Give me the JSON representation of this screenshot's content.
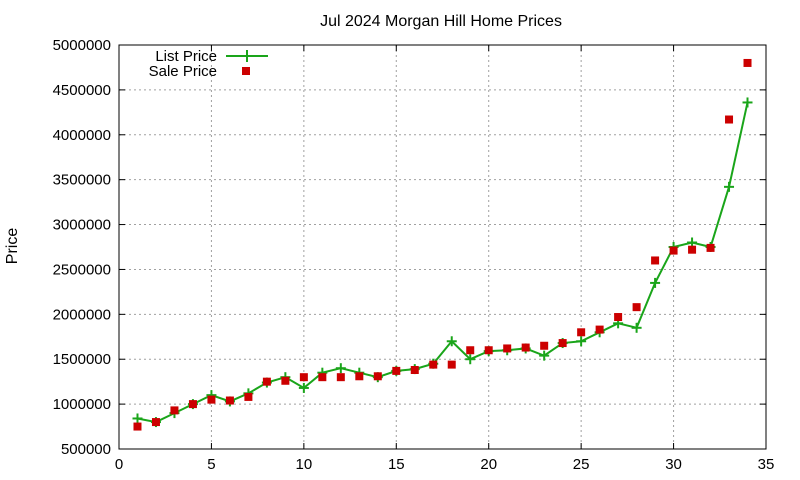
{
  "chart_data": {
    "type": "line",
    "title": "Jul 2024 Morgan Hill Home Prices",
    "xlabel": "",
    "ylabel": "Price",
    "xlim": [
      0,
      35
    ],
    "ylim": [
      500000,
      5000000
    ],
    "x_ticks": [
      "0",
      "5",
      "10",
      "15",
      "20",
      "25",
      "30",
      "35"
    ],
    "x_tick_values": [
      0,
      5,
      10,
      15,
      20,
      25,
      30,
      35
    ],
    "y_ticks": [
      "500000",
      "1000000",
      "1500000",
      "2000000",
      "2500000",
      "3000000",
      "3500000",
      "4000000",
      "4500000",
      "5000000"
    ],
    "y_tick_values": [
      500000,
      1000000,
      1500000,
      2000000,
      2500000,
      3000000,
      3500000,
      4000000,
      4500000,
      5000000
    ],
    "grid": true,
    "legend_position": "top-left",
    "series": [
      {
        "name": "List Price",
        "style": "line-with-plus-markers",
        "color": "#1aa51a",
        "x": [
          1,
          2,
          3,
          4,
          5,
          6,
          7,
          8,
          9,
          10,
          11,
          12,
          13,
          14,
          15,
          16,
          17,
          18,
          19,
          20,
          21,
          22,
          23,
          24,
          25,
          26,
          27,
          28,
          29,
          30,
          31,
          32,
          33,
          34
        ],
        "values": [
          840000,
          800000,
          900000,
          1000000,
          1100000,
          1030000,
          1120000,
          1240000,
          1300000,
          1180000,
          1350000,
          1400000,
          1350000,
          1300000,
          1370000,
          1390000,
          1450000,
          1700000,
          1500000,
          1590000,
          1600000,
          1620000,
          1540000,
          1680000,
          1700000,
          1800000,
          1900000,
          1850000,
          2350000,
          2750000,
          2800000,
          2750000,
          3420000,
          4360000
        ]
      },
      {
        "name": "Sale Price",
        "style": "square-markers",
        "color": "#cc0000",
        "x": [
          1,
          2,
          3,
          4,
          5,
          6,
          7,
          8,
          9,
          10,
          11,
          12,
          13,
          14,
          15,
          16,
          17,
          18,
          19,
          20,
          21,
          22,
          23,
          24,
          25,
          26,
          27,
          28,
          29,
          30,
          31,
          32,
          33,
          34
        ],
        "values": [
          750000,
          800000,
          930000,
          1000000,
          1050000,
          1040000,
          1080000,
          1250000,
          1260000,
          1300000,
          1300000,
          1300000,
          1310000,
          1310000,
          1370000,
          1380000,
          1440000,
          1440000,
          1600000,
          1600000,
          1620000,
          1630000,
          1650000,
          1680000,
          1800000,
          1830000,
          1970000,
          2080000,
          2600000,
          2710000,
          2720000,
          2740000,
          4170000,
          4800000
        ]
      }
    ]
  }
}
